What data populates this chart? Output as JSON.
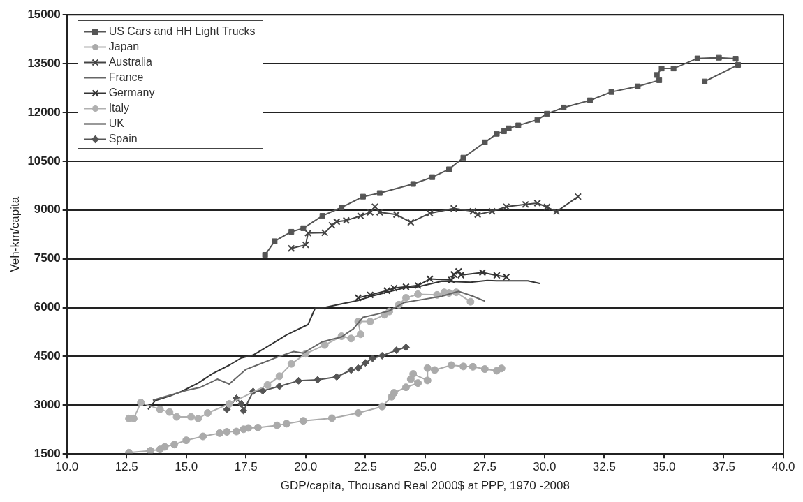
{
  "chart_data": {
    "type": "line",
    "xlabel": "GDP/capita, Thousand Real 2000$ at PPP, 1970 -2008",
    "ylabel": "Veh-km/capita",
    "xlim": [
      10,
      40
    ],
    "xticks": [
      {
        "value": 10,
        "label": "10.0"
      },
      12.5,
      {
        "value": 15,
        "label": "15.0"
      },
      17.5,
      {
        "value": 20,
        "label": "20.0"
      },
      22.5,
      {
        "value": 25,
        "label": "25.0"
      },
      27.5,
      {
        "value": 30,
        "label": "30.0"
      },
      32.5,
      {
        "value": 35,
        "label": "35.0"
      },
      37.5,
      {
        "value": 40,
        "label": "40.0"
      }
    ],
    "ylim": [
      1500,
      15000
    ],
    "yticks": [
      1500,
      3000,
      4500,
      6000,
      7500,
      9000,
      10500,
      12000,
      13500,
      15000
    ],
    "grid": "y",
    "legend": "top left",
    "series": [
      {
        "name": "US Cars and HH Light Trucks",
        "color": "#555555",
        "marker": "square",
        "x": [
          18.3,
          18.7,
          19.4,
          19.9,
          20.7,
          21.5,
          22.4,
          23.1,
          24.5,
          25.3,
          26.0,
          26.6,
          27.5,
          28.0,
          28.3,
          28.5,
          28.9,
          29.7,
          30.1,
          30.8,
          31.9,
          32.8,
          33.9,
          34.8,
          34.7,
          34.9,
          35.4,
          36.4,
          37.3,
          38.0,
          38.1,
          36.7
        ],
        "values": [
          7620,
          8040,
          8330,
          8440,
          8820,
          9080,
          9410,
          9520,
          9800,
          10010,
          10250,
          10610,
          11080,
          11340,
          11420,
          11510,
          11600,
          11770,
          11960,
          12150,
          12370,
          12630,
          12800,
          12990,
          13150,
          13350,
          13350,
          13660,
          13680,
          13650,
          13460,
          12950
        ]
      },
      {
        "name": "Japan",
        "color": "#aaaaaa",
        "marker": "circle",
        "x": [
          12.6,
          13.5,
          13.9,
          14.1,
          14.5,
          15.0,
          15.7,
          16.4,
          16.7,
          17.1,
          17.4,
          17.6,
          18.0,
          18.8,
          19.2,
          19.9,
          21.1,
          22.2,
          23.2,
          23.6,
          23.7,
          24.2,
          24.7,
          24.4,
          24.5,
          25.1,
          25.1,
          25.4,
          26.1,
          26.6,
          27.0,
          27.5,
          28.0,
          28.2
        ],
        "values": [
          1540,
          1600,
          1640,
          1720,
          1790,
          1920,
          2040,
          2140,
          2180,
          2190,
          2260,
          2300,
          2310,
          2380,
          2430,
          2520,
          2600,
          2760,
          2960,
          3260,
          3380,
          3550,
          3680,
          3800,
          3960,
          3760,
          4140,
          4080,
          4230,
          4190,
          4180,
          4110,
          4060,
          4130
        ]
      },
      {
        "name": "Australia",
        "color": "#444444",
        "marker": "cross",
        "x": [
          19.4,
          20.0,
          20.1,
          20.8,
          21.1,
          21.3,
          21.7,
          22.3,
          22.7,
          22.9,
          23.1,
          23.8,
          24.4,
          25.2,
          26.2,
          27.0,
          27.2,
          27.8,
          28.4,
          29.2,
          29.7,
          30.1,
          30.5,
          31.4
        ],
        "values": [
          7820,
          7930,
          8290,
          8300,
          8530,
          8640,
          8680,
          8820,
          8930,
          9100,
          8930,
          8860,
          8620,
          8900,
          9050,
          8960,
          8860,
          8960,
          9100,
          9170,
          9210,
          9090,
          8950,
          9410
        ]
      },
      {
        "name": "France",
        "color": "#666666",
        "marker": "none",
        "x": [
          13.6,
          14.3,
          15.0,
          15.6,
          16.3,
          16.8,
          17.5,
          18.2,
          18.9,
          19.5,
          19.9,
          20.7,
          21.5,
          22.0,
          22.4,
          23.0,
          23.5,
          24.1,
          24.9,
          25.7,
          26.4,
          27.0,
          27.5
        ],
        "values": [
          3150,
          3300,
          3450,
          3550,
          3800,
          3650,
          4100,
          4300,
          4500,
          4650,
          4600,
          4950,
          5100,
          5350,
          5700,
          5800,
          5900,
          6150,
          6250,
          6350,
          6500,
          6350,
          6200
        ]
      },
      {
        "name": "Germany",
        "color": "#333333",
        "marker": "cross",
        "x": [
          22.2,
          22.7,
          23.4,
          23.7,
          24.2,
          24.7,
          25.2,
          26.1,
          26.2,
          26.4,
          26.5,
          27.4,
          28.0,
          28.4
        ],
        "values": [
          6300,
          6390,
          6520,
          6600,
          6640,
          6680,
          6880,
          6850,
          7020,
          7110,
          7000,
          7080,
          6990,
          6940
        ]
      },
      {
        "name": "Italy",
        "color": "#b0b0b0",
        "marker": "circle",
        "x": [
          12.6,
          12.8,
          13.1,
          13.9,
          14.3,
          14.6,
          15.2,
          15.5,
          15.9,
          16.8,
          18.4,
          18.9,
          19.4,
          20.0,
          20.8,
          21.5,
          21.9,
          22.3,
          22.2,
          22.7,
          23.3,
          23.5,
          23.9,
          24.2,
          24.7,
          25.5,
          25.8,
          26.0,
          26.3,
          26.9
        ],
        "values": [
          2590,
          2590,
          3080,
          2870,
          2790,
          2640,
          2640,
          2590,
          2760,
          3040,
          3620,
          3890,
          4270,
          4580,
          4850,
          5120,
          5050,
          5180,
          5570,
          5570,
          5780,
          5880,
          6090,
          6300,
          6410,
          6390,
          6470,
          6450,
          6470,
          6180
        ]
      },
      {
        "name": "UK",
        "color": "#333333",
        "marker": "none",
        "x": [
          13.4,
          13.7,
          14.3,
          14.8,
          15.5,
          16.1,
          16.8,
          17.3,
          17.8,
          18.4,
          19.2,
          20.1,
          20.4,
          20.7,
          21.6,
          22.2,
          22.8,
          23.4,
          24.1,
          24.7,
          25.7,
          26.9,
          27.6,
          28.0,
          28.8,
          29.3,
          29.8
        ],
        "values": [
          2870,
          3140,
          3280,
          3420,
          3680,
          3970,
          4230,
          4450,
          4540,
          4800,
          5160,
          5480,
          5990,
          5990,
          6130,
          6220,
          6360,
          6470,
          6600,
          6640,
          6810,
          6780,
          6830,
          6820,
          6820,
          6820,
          6740
        ]
      },
      {
        "name": "Spain",
        "color": "#555555",
        "marker": "diamond",
        "x": [
          16.7,
          17.1,
          17.3,
          17.4,
          17.8,
          18.2,
          18.9,
          19.7,
          20.5,
          21.3,
          21.9,
          22.2,
          22.5,
          22.8,
          23.2,
          23.8,
          24.2
        ],
        "values": [
          2870,
          3210,
          3040,
          2830,
          3420,
          3440,
          3580,
          3750,
          3780,
          3870,
          4080,
          4140,
          4300,
          4440,
          4520,
          4690,
          4780
        ]
      }
    ]
  }
}
